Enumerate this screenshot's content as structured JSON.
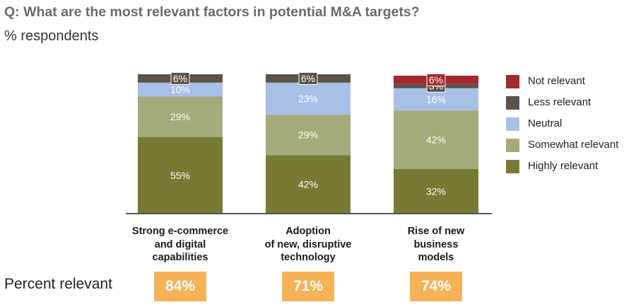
{
  "title": "Q: What are the most relevant factors in potential M&A targets?",
  "subtitle": "% respondents",
  "percent_relevant_label": "Percent relevant",
  "colors": {
    "not_relevant": "#a4282c",
    "less_relevant": "#5a5346",
    "neutral": "#a8c0e6",
    "somewhat_relevant": "#a5aa7a",
    "highly_relevant": "#777a32",
    "percent_box": "#f5b257"
  },
  "chart_data": {
    "type": "bar",
    "stacked": true,
    "title": "Q: What are the most relevant factors in potential M&A targets?",
    "ylabel": "% respondents",
    "ylim": [
      0,
      100
    ],
    "grid": false,
    "legend_position": "right",
    "categories": [
      [
        "Strong e-commerce",
        "and digital",
        "capabilities"
      ],
      [
        "Adoption",
        "of new, disruptive",
        "technology"
      ],
      [
        "Rise of new",
        "business",
        "models"
      ]
    ],
    "series": [
      {
        "name": "Highly relevant",
        "color": "#777a32",
        "values": [
          55,
          42,
          32
        ],
        "labels": [
          "55%",
          "42%",
          "32%"
        ]
      },
      {
        "name": "Somewhat relevant",
        "color": "#a5aa7a",
        "values": [
          29,
          29,
          42
        ],
        "labels": [
          "29%",
          "29%",
          "42%"
        ]
      },
      {
        "name": "Neutral",
        "color": "#a8c0e6",
        "values": [
          10,
          23,
          16
        ],
        "labels": [
          "10%",
          "23%",
          "16%"
        ]
      },
      {
        "name": "Less relevant",
        "color": "#5a5346",
        "values": [
          6,
          6,
          3
        ],
        "labels": [
          "6%",
          "6%",
          "3%"
        ]
      },
      {
        "name": "Not relevant",
        "color": "#a4282c",
        "values": [
          0,
          0,
          6
        ],
        "labels": [
          "",
          "",
          "6%"
        ]
      }
    ],
    "legend": [
      "Not relevant",
      "Less relevant",
      "Neutral",
      "Somewhat relevant",
      "Highly relevant"
    ],
    "percent_relevant": [
      "84%",
      "71%",
      "74%"
    ]
  }
}
